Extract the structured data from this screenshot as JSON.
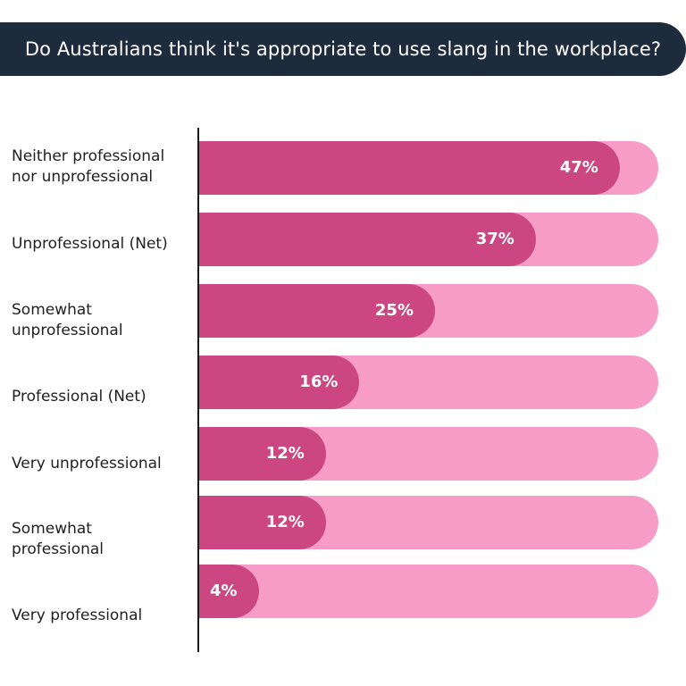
{
  "header": {
    "title": "Do Australians think it's appropriate to use slang in the workplace?"
  },
  "colors": {
    "title_background": "#1e2b3c",
    "bar_fill": "#cc4682",
    "bar_track": "#f79bc7",
    "value_text": "#ffffff"
  },
  "chart_data": {
    "type": "bar",
    "orientation": "horizontal",
    "title": "Do Australians think it's appropriate to use slang in the workplace?",
    "categories": [
      "Neither professional nor unprofessional",
      "Unprofessional (Net)",
      "Somewhat unprofessional",
      "Professional (Net)",
      "Very unprofessional",
      "Somewhat professional",
      "Very professional"
    ],
    "values": [
      47,
      37,
      25,
      16,
      12,
      12,
      4
    ],
    "value_labels": [
      "47%",
      "37%",
      "25%",
      "16%",
      "12%",
      "12%",
      "4%"
    ],
    "unit": "%",
    "xlim": [
      0,
      100
    ],
    "grid": false,
    "legend": "none"
  }
}
